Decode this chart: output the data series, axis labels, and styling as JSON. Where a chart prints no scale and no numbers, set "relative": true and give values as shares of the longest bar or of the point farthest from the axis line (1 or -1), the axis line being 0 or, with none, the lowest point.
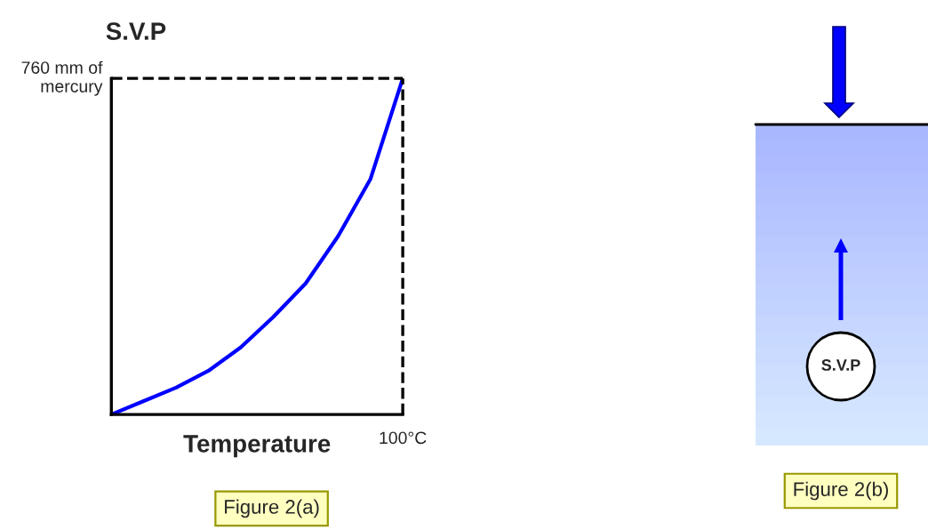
{
  "chart_data": [
    {
      "type": "line",
      "xlabel": "Temperature",
      "ylabel": "S.V.P",
      "relative": true,
      "categories": [
        null,
        null,
        null,
        null,
        null,
        null,
        null,
        null,
        null,
        null
      ],
      "series": [
        {
          "color": "#0000ff",
          "values": [
            0,
            0.04,
            0.08,
            0.13,
            0.2,
            0.29,
            0.39,
            0.53,
            0.7,
            1.0
          ]
        }
      ],
      "ref_lines": [
        {
          "axis": "y",
          "value": 1,
          "label": "760 mm of mercury",
          "line_style": "dashed",
          "color": "#000000"
        }
      ],
      "annotations": [
        "100°C",
        "Figure 2(a)"
      ]
    },
    {
      "type": "other",
      "annotations": [
        "S.V.P",
        "Figure 2(b)"
      ]
    }
  ]
}
